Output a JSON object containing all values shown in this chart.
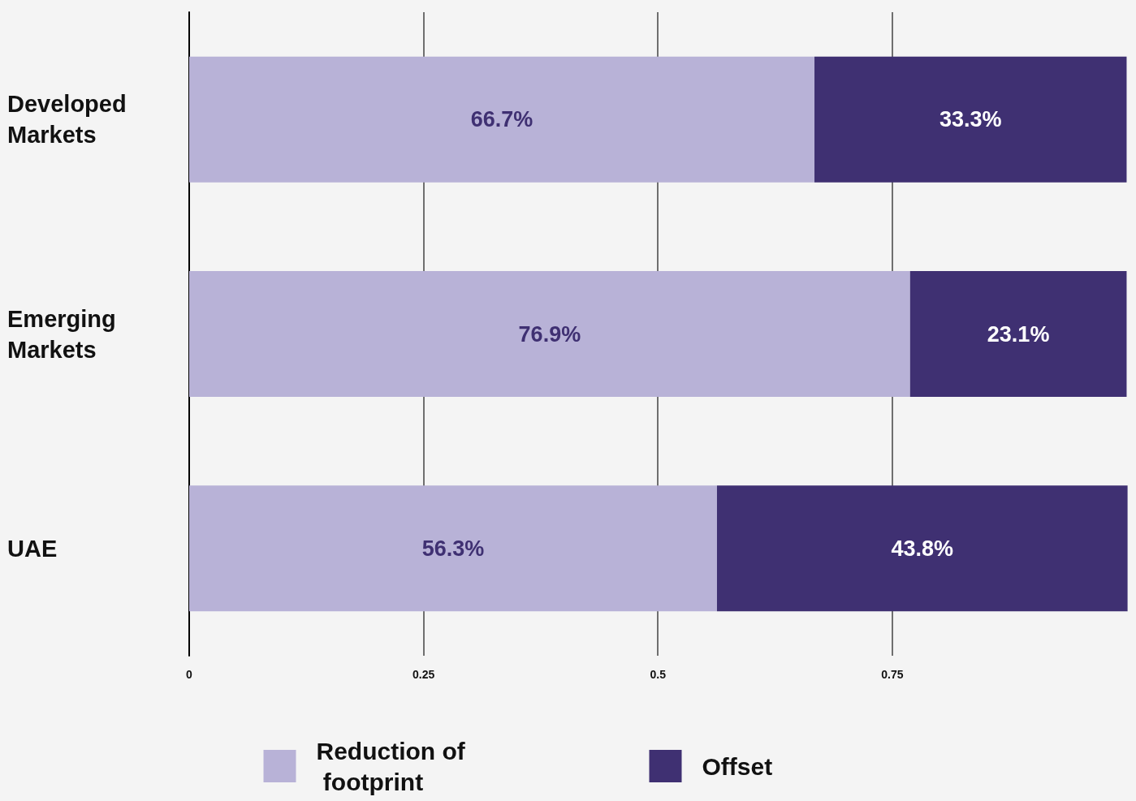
{
  "chart_data": {
    "type": "bar",
    "orientation": "horizontal",
    "stacked": true,
    "categories": [
      "Developed Markets",
      "Emerging Markets",
      "UAE"
    ],
    "series": [
      {
        "name": "Reduction of footprint",
        "color": "#b8b2d7",
        "values": [
          0.667,
          0.769,
          0.563
        ],
        "value_labels": [
          "66.7%",
          "76.9%",
          "56.3%"
        ]
      },
      {
        "name": "Offset",
        "color": "#3f3072",
        "values": [
          0.333,
          0.231,
          0.438
        ],
        "value_labels": [
          "33.3%",
          "23.1%",
          "43.8%"
        ]
      }
    ],
    "xlim": [
      0,
      1.01
    ],
    "xticks": [
      0,
      0.25,
      0.5,
      0.75
    ],
    "grid": "x",
    "legend": "bottom"
  }
}
